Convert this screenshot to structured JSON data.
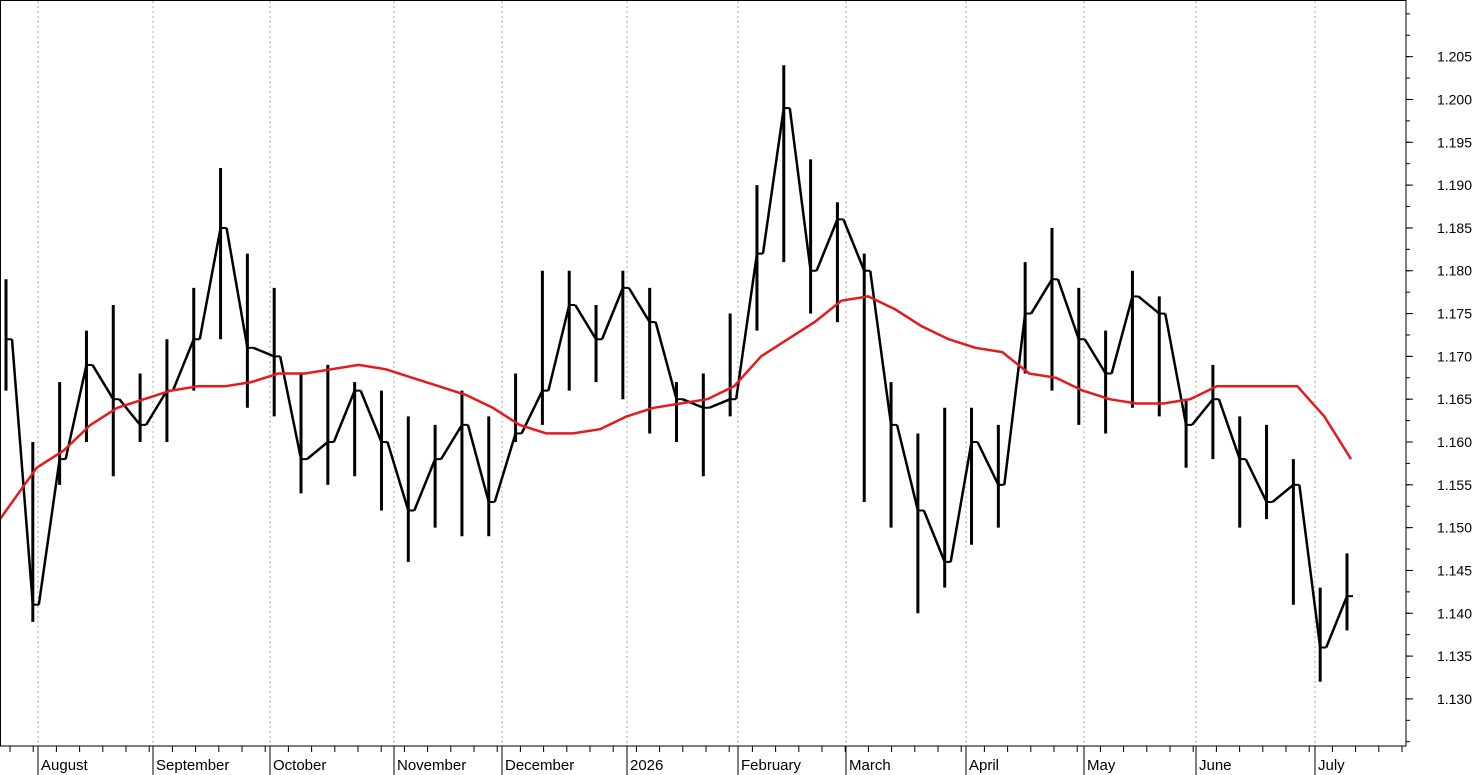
{
  "chart_data": {
    "type": "line",
    "title": "",
    "xlabel": "",
    "ylabel": "",
    "x_axis_labels": [
      "August",
      "September",
      "October",
      "November",
      "December",
      "2026",
      "February",
      "March",
      "April",
      "May",
      "June",
      "July"
    ],
    "y_ticks": [
      "1.130",
      "1.135",
      "1.140",
      "1.145",
      "1.150",
      "1.155",
      "1.160",
      "1.165",
      "1.170",
      "1.175",
      "1.180",
      "1.185",
      "1.190",
      "1.195",
      "1.200",
      "1.205"
    ],
    "ylim": [
      1.1245,
      1.2115
    ],
    "grid": "vertical dotted lines at month starts",
    "legend": "none",
    "series": [
      {
        "style": "price bars (high/low)",
        "color": "#000000",
        "dates": [
          "Jul 24",
          "Jul 31",
          "Aug 7",
          "Aug 14",
          "Aug 21",
          "Aug 28",
          "Sep 4",
          "Sep 11",
          "Sep 18",
          "Sep 25",
          "Oct 2",
          "Oct 9",
          "Oct 16",
          "Oct 23",
          "Oct 30",
          "Nov 6",
          "Nov 13",
          "Nov 20",
          "Nov 27",
          "Dec 4",
          "Dec 11",
          "Dec 18",
          "Dec 25",
          "Jan 1",
          "Jan 8",
          "Jan 15",
          "Jan 22",
          "Jan 29",
          "Feb 5",
          "Feb 12",
          "Feb 19",
          "Feb 26",
          "Mar 5",
          "Mar 12",
          "Mar 19",
          "Mar 26",
          "Apr 2",
          "Apr 9",
          "Apr 16",
          "Apr 23",
          "Apr 30",
          "May 7",
          "May 14",
          "May 21",
          "May 28",
          "Jun 4",
          "Jun 11",
          "Jun 18",
          "Jun 25",
          "Jul 2",
          "Jul 9"
        ],
        "close": [
          1.172,
          1.141,
          1.158,
          1.169,
          1.165,
          1.162,
          1.166,
          1.172,
          1.185,
          1.171,
          1.17,
          1.158,
          1.16,
          1.166,
          1.16,
          1.152,
          1.158,
          1.162,
          1.153,
          1.161,
          1.166,
          1.176,
          1.172,
          1.178,
          1.174,
          1.165,
          1.164,
          1.165,
          1.182,
          1.199,
          1.18,
          1.186,
          1.18,
          1.162,
          1.152,
          1.146,
          1.16,
          1.155,
          1.175,
          1.179,
          1.172,
          1.168,
          1.177,
          1.175,
          1.162,
          1.165,
          1.158,
          1.153,
          1.155,
          1.136,
          1.142
        ],
        "high": [
          1.179,
          1.16,
          1.167,
          1.173,
          1.176,
          1.168,
          1.172,
          1.178,
          1.192,
          1.182,
          1.178,
          1.168,
          1.169,
          1.167,
          1.166,
          1.163,
          1.162,
          1.166,
          1.163,
          1.168,
          1.18,
          1.18,
          1.176,
          1.18,
          1.178,
          1.167,
          1.168,
          1.175,
          1.19,
          1.204,
          1.193,
          1.188,
          1.182,
          1.167,
          1.161,
          1.164,
          1.164,
          1.162,
          1.181,
          1.185,
          1.178,
          1.173,
          1.18,
          1.177,
          1.165,
          1.169,
          1.163,
          1.162,
          1.158,
          1.143,
          1.147
        ],
        "low": [
          1.166,
          1.139,
          1.155,
          1.16,
          1.156,
          1.16,
          1.16,
          1.166,
          1.172,
          1.164,
          1.163,
          1.154,
          1.155,
          1.156,
          1.152,
          1.146,
          1.15,
          1.149,
          1.149,
          1.16,
          1.162,
          1.166,
          1.167,
          1.165,
          1.161,
          1.16,
          1.156,
          1.163,
          1.173,
          1.181,
          1.175,
          1.174,
          1.153,
          1.15,
          1.14,
          1.143,
          1.148,
          1.15,
          1.168,
          1.166,
          1.162,
          1.161,
          1.164,
          1.163,
          1.157,
          1.158,
          1.15,
          1.151,
          1.141,
          1.132,
          1.138
        ]
      },
      {
        "style": "moving average line",
        "color": "#e41a1c",
        "dates": [
          "Jul 24",
          "Jul 31",
          "Aug 7",
          "Aug 14",
          "Aug 21",
          "Aug 28",
          "Sep 4",
          "Sep 11",
          "Sep 18",
          "Sep 25",
          "Oct 2",
          "Oct 9",
          "Oct 16",
          "Oct 23",
          "Oct 30",
          "Nov 6",
          "Nov 13",
          "Nov 20",
          "Nov 27",
          "Dec 4",
          "Dec 11",
          "Dec 18",
          "Dec 25",
          "Jan 1",
          "Jan 8",
          "Jan 15",
          "Jan 22",
          "Jan 29",
          "Feb 5",
          "Feb 12",
          "Feb 19",
          "Feb 26",
          "Mar 5",
          "Mar 12",
          "Mar 19",
          "Mar 26",
          "Apr 2",
          "Apr 9",
          "Apr 16",
          "Apr 23",
          "Apr 30",
          "May 7",
          "May 14",
          "May 21",
          "May 28",
          "Jun 4",
          "Jun 11",
          "Jun 18",
          "Jun 25",
          "Jul 2",
          "Jul 9"
        ],
        "values": [
          1.151,
          1.157,
          1.159,
          1.162,
          1.164,
          1.165,
          1.166,
          1.1665,
          1.1665,
          1.167,
          1.168,
          1.168,
          1.1685,
          1.169,
          1.1685,
          1.1675,
          1.1665,
          1.1655,
          1.164,
          1.162,
          1.161,
          1.161,
          1.1615,
          1.163,
          1.164,
          1.1645,
          1.165,
          1.1665,
          1.17,
          1.172,
          1.174,
          1.1765,
          1.177,
          1.1755,
          1.1735,
          1.172,
          1.171,
          1.1705,
          1.168,
          1.1675,
          1.166,
          1.165,
          1.1645,
          1.1645,
          1.165,
          1.1665,
          1.1665,
          1.1665,
          1.1665,
          1.163,
          1.158
        ]
      }
    ]
  }
}
